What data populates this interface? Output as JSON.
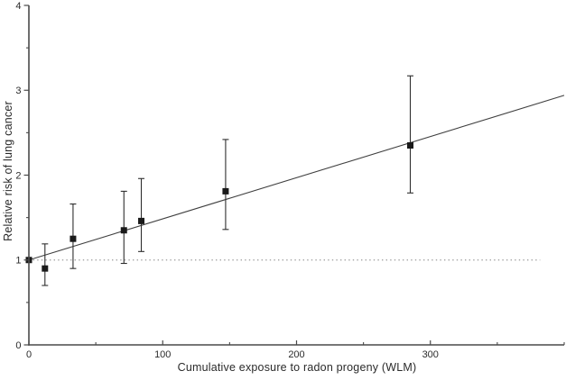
{
  "figure": {
    "background": "#ffffff"
  },
  "chart_data": {
    "type": "scatter",
    "title": "",
    "xlabel": "Cumulative exposure to radon progeny (WLM)",
    "ylabel": "Relative risk of lung cancer",
    "xlim": [
      0,
      400
    ],
    "ylim": [
      0,
      4
    ],
    "x_major_ticks": [
      0,
      100,
      200,
      300
    ],
    "x_minor_ticks": [
      50,
      150,
      250,
      350,
      400
    ],
    "y_major_ticks": [
      0,
      1,
      2,
      3,
      4
    ],
    "y_minor_ticks": [
      0.5,
      1.5,
      2.5,
      3.5
    ],
    "grid": false,
    "legend": null,
    "points": [
      {
        "x": 0,
        "y": 1.0,
        "lo": null,
        "hi": null
      },
      {
        "x": 12,
        "y": 0.9,
        "lo": 0.7,
        "hi": 1.19
      },
      {
        "x": 33,
        "y": 1.25,
        "lo": 0.9,
        "hi": 1.66
      },
      {
        "x": 71,
        "y": 1.35,
        "lo": 0.96,
        "hi": 1.81
      },
      {
        "x": 84,
        "y": 1.46,
        "lo": 1.1,
        "hi": 1.96
      },
      {
        "x": 147,
        "y": 1.81,
        "lo": 1.36,
        "hi": 2.42
      },
      {
        "x": 285,
        "y": 2.35,
        "lo": 1.79,
        "hi": 3.17
      }
    ],
    "fit_line": {
      "x1": 0,
      "y1": 1.0,
      "x2": 400,
      "y2": 2.94
    },
    "reference_line": {
      "y": 1.0,
      "x1": 0,
      "x2": 382,
      "style": "dotted"
    },
    "colors": {
      "marker": "#1a1a1a",
      "error_bar": "#2e2e2e",
      "fit_line": "#3f3f3f",
      "axis": "#4a4a4a",
      "reference_dotted": "#9a9a9a",
      "text": "#2b2b2b"
    }
  }
}
